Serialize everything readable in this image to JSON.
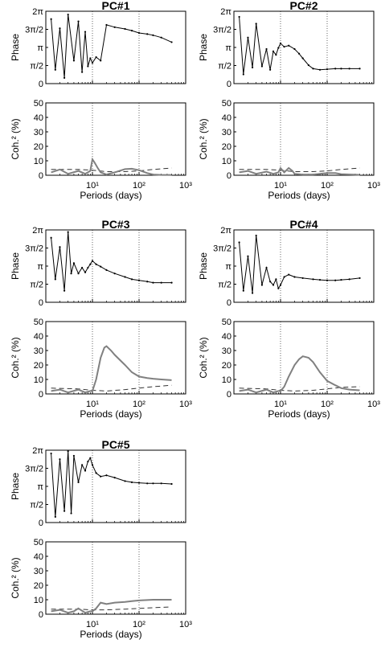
{
  "chart_data": [
    {
      "type": "line",
      "title": "PC#1",
      "xlabel": "Periods (days)",
      "phase_label": "Phase",
      "coh_label": "Coh.² (%)",
      "x_scale": "log",
      "xlim": [
        1,
        1000
      ],
      "x_tick_labels": [
        "10¹",
        "10²",
        "10³"
      ],
      "phase_ylim_rad": [
        0,
        6.2832
      ],
      "phase_tick_labels": [
        "0",
        "π/2",
        "π",
        "3π/2",
        "2π"
      ],
      "coh_ylim": [
        0,
        50
      ],
      "coh_tick_labels": [
        "0",
        "10",
        "20",
        "30",
        "40",
        "50"
      ],
      "reference_lines_days": [
        10,
        100
      ],
      "phase": {
        "x": [
          1.3,
          1.6,
          2,
          2.5,
          3,
          4,
          5,
          6,
          7,
          8,
          9,
          10,
          12,
          15,
          20,
          30,
          50,
          70,
          100,
          150,
          200,
          300,
          500
        ],
        "y": [
          5.6,
          1.2,
          4.8,
          0.5,
          6.0,
          2.0,
          5.4,
          1.0,
          4.5,
          1.5,
          2.2,
          1.8,
          2.3,
          2.0,
          5.1,
          4.9,
          4.75,
          4.6,
          4.4,
          4.3,
          4.2,
          4.0,
          3.6
        ]
      },
      "coherence": {
        "x": [
          1.3,
          2,
          3,
          5,
          7,
          9,
          10,
          11,
          13,
          15,
          20,
          30,
          50,
          70,
          100,
          150,
          200,
          300,
          500
        ],
        "y": [
          2,
          4,
          1,
          3,
          1,
          3,
          11,
          9,
          5,
          2,
          0.5,
          2,
          4.2,
          4.5,
          3.5,
          1.5,
          0.5,
          0.2,
          0.2
        ]
      },
      "significance": {
        "x": [
          1.3,
          5,
          10,
          20,
          50,
          100,
          200,
          500
        ],
        "y": [
          4,
          4,
          3.5,
          2.5,
          2.5,
          3,
          4,
          5
        ]
      }
    },
    {
      "type": "line",
      "title": "PC#2",
      "xlabel": "Periods (days)",
      "phase_label": "Phase",
      "coh_label": "Coh.² (%)",
      "x_scale": "log",
      "xlim": [
        1,
        1000
      ],
      "x_tick_labels": [
        "10¹",
        "10²",
        "10³"
      ],
      "phase_ylim_rad": [
        0,
        6.2832
      ],
      "phase_tick_labels": [
        "0",
        "π/2",
        "π",
        "3π/2",
        "2π"
      ],
      "coh_ylim": [
        0,
        50
      ],
      "coh_tick_labels": [
        "0",
        "10",
        "20",
        "30",
        "40",
        "50"
      ],
      "reference_lines_days": [
        10,
        100
      ],
      "phase": {
        "x": [
          1.3,
          1.6,
          2,
          2.5,
          3,
          4,
          5,
          6,
          7,
          8,
          9,
          10,
          12,
          15,
          20,
          25,
          30,
          40,
          50,
          70,
          100,
          150,
          200,
          300,
          500
        ],
        "y": [
          5.8,
          0.8,
          4.0,
          1.4,
          5.2,
          1.5,
          3.0,
          1.2,
          2.8,
          2.5,
          3.1,
          3.5,
          3.2,
          3.3,
          3.0,
          2.6,
          2.2,
          1.6,
          1.3,
          1.2,
          1.25,
          1.3,
          1.3,
          1.3,
          1.3
        ]
      },
      "coherence": {
        "x": [
          1.3,
          2,
          3,
          5,
          7,
          9,
          10,
          12,
          15,
          18,
          20,
          30,
          50,
          100,
          150,
          200,
          500
        ],
        "y": [
          2,
          3,
          1,
          2.5,
          1,
          2,
          5,
          2,
          5,
          3,
          1,
          0.5,
          0.5,
          1.5,
          1.5,
          0.8,
          0.3
        ]
      },
      "significance": {
        "x": [
          1.3,
          5,
          10,
          20,
          50,
          100,
          200,
          500
        ],
        "y": [
          4,
          4,
          3.5,
          2.5,
          2.5,
          3,
          4,
          5
        ]
      }
    },
    {
      "type": "line",
      "title": "PC#3",
      "xlabel": "Periods (days)",
      "phase_label": "Phase",
      "coh_label": "Coh.² (%)",
      "x_scale": "log",
      "xlim": [
        1,
        1000
      ],
      "x_tick_labels": [
        "10¹",
        "10²",
        "10³"
      ],
      "phase_ylim_rad": [
        0,
        6.2832
      ],
      "phase_tick_labels": [
        "0",
        "π/2",
        "π",
        "3π/2",
        "2π"
      ],
      "coh_ylim": [
        0,
        50
      ],
      "coh_tick_labels": [
        "0",
        "10",
        "20",
        "30",
        "40",
        "50"
      ],
      "reference_lines_days": [
        10,
        100
      ],
      "phase": {
        "x": [
          1.3,
          1.6,
          2,
          2.5,
          3,
          3.5,
          4,
          5,
          6,
          7,
          8,
          9,
          10,
          12,
          15,
          20,
          30,
          50,
          70,
          100,
          150,
          200,
          300,
          500
        ],
        "y": [
          5.6,
          2.0,
          4.8,
          1.0,
          6.1,
          2.5,
          3.4,
          2.5,
          3.0,
          2.6,
          3.0,
          3.3,
          3.6,
          3.3,
          3.1,
          2.8,
          2.5,
          2.2,
          2.0,
          1.9,
          1.8,
          1.7,
          1.7,
          1.7
        ]
      },
      "coherence": {
        "x": [
          1.3,
          2,
          3,
          5,
          7,
          9,
          10,
          12,
          15,
          18,
          20,
          25,
          30,
          50,
          70,
          100,
          150,
          200,
          300,
          500
        ],
        "y": [
          2,
          3,
          1,
          3,
          1,
          2,
          2,
          10,
          25,
          32,
          33,
          30,
          27,
          20,
          15,
          12,
          11,
          10.5,
          10,
          9.5
        ]
      },
      "significance": {
        "x": [
          1.3,
          5,
          10,
          20,
          50,
          100,
          200,
          500
        ],
        "y": [
          4,
          3.5,
          2.5,
          2,
          3,
          4,
          5,
          6
        ]
      }
    },
    {
      "type": "line",
      "title": "PC#4",
      "xlabel": "Periods (days)",
      "phase_label": "Phase",
      "coh_label": "Coh.² (%)",
      "x_scale": "log",
      "xlim": [
        1,
        1000
      ],
      "x_tick_labels": [
        "10¹",
        "10²",
        "10³"
      ],
      "phase_ylim_rad": [
        0,
        6.2832
      ],
      "phase_tick_labels": [
        "0",
        "π/2",
        "π",
        "3π/2",
        "2π"
      ],
      "coh_ylim": [
        0,
        50
      ],
      "coh_tick_labels": [
        "0",
        "10",
        "20",
        "30",
        "40",
        "50"
      ],
      "reference_lines_days": [
        10,
        100
      ],
      "phase": {
        "x": [
          1.3,
          1.6,
          2,
          2.5,
          3,
          4,
          5,
          6,
          7,
          8,
          9,
          10,
          12,
          15,
          20,
          30,
          50,
          70,
          100,
          150,
          200,
          300,
          500
        ],
        "y": [
          5.2,
          1.0,
          4.0,
          0.8,
          5.8,
          1.5,
          3.0,
          1.8,
          1.5,
          2.0,
          1.2,
          1.5,
          2.2,
          2.4,
          2.2,
          2.1,
          2.0,
          1.95,
          1.9,
          1.9,
          1.95,
          2.0,
          2.1
        ]
      },
      "coherence": {
        "x": [
          1.3,
          2,
          3,
          5,
          7,
          9,
          10,
          12,
          15,
          20,
          25,
          30,
          40,
          50,
          70,
          100,
          150,
          200,
          300,
          500
        ],
        "y": [
          2,
          3,
          1,
          3,
          1,
          2,
          2,
          5,
          12,
          20,
          24,
          26,
          25,
          22,
          15,
          9,
          6,
          4,
          3,
          2.5
        ]
      },
      "significance": {
        "x": [
          1.3,
          5,
          10,
          20,
          50,
          100,
          200,
          500
        ],
        "y": [
          4,
          3.5,
          2.5,
          2,
          2.5,
          3.5,
          4.5,
          5
        ]
      }
    },
    {
      "type": "line",
      "title": "PC#5",
      "xlabel": "Periods (days)",
      "phase_label": "Phase",
      "coh_label": "Coh.² (%)",
      "x_scale": "log",
      "xlim": [
        1,
        1000
      ],
      "x_tick_labels": [
        "10¹",
        "10²",
        "10³"
      ],
      "phase_ylim_rad": [
        0,
        6.2832
      ],
      "phase_tick_labels": [
        "0",
        "π/2",
        "π",
        "3π/2",
        "2π"
      ],
      "coh_ylim": [
        0,
        50
      ],
      "coh_tick_labels": [
        "0",
        "10",
        "20",
        "30",
        "40",
        "50"
      ],
      "reference_lines_days": [
        10,
        100
      ],
      "phase": {
        "x": [
          1.3,
          1.6,
          2,
          2.5,
          3,
          3.5,
          4,
          5,
          6,
          7,
          8,
          9,
          10,
          12,
          15,
          20,
          30,
          50,
          70,
          100,
          150,
          200,
          300,
          500
        ],
        "y": [
          6.0,
          0.5,
          5.5,
          1.0,
          6.2,
          0.8,
          5.8,
          3.5,
          5.0,
          4.5,
          5.3,
          5.6,
          5.0,
          4.3,
          4.0,
          4.1,
          3.9,
          3.6,
          3.5,
          3.45,
          3.4,
          3.4,
          3.4,
          3.35
        ]
      },
      "coherence": {
        "x": [
          1.3,
          2,
          3,
          4,
          5,
          7,
          9,
          10,
          12,
          15,
          20,
          30,
          50,
          70,
          100,
          150,
          200,
          300,
          500
        ],
        "y": [
          2,
          3,
          1,
          2,
          4,
          1,
          2,
          2,
          4,
          8,
          7,
          8,
          8.5,
          9,
          9.5,
          9.8,
          10,
          10,
          10
        ]
      },
      "significance": {
        "x": [
          1.3,
          5,
          10,
          20,
          50,
          100,
          200,
          500
        ],
        "y": [
          3.5,
          3.5,
          3,
          3,
          3.5,
          4,
          4.5,
          5
        ]
      }
    }
  ]
}
